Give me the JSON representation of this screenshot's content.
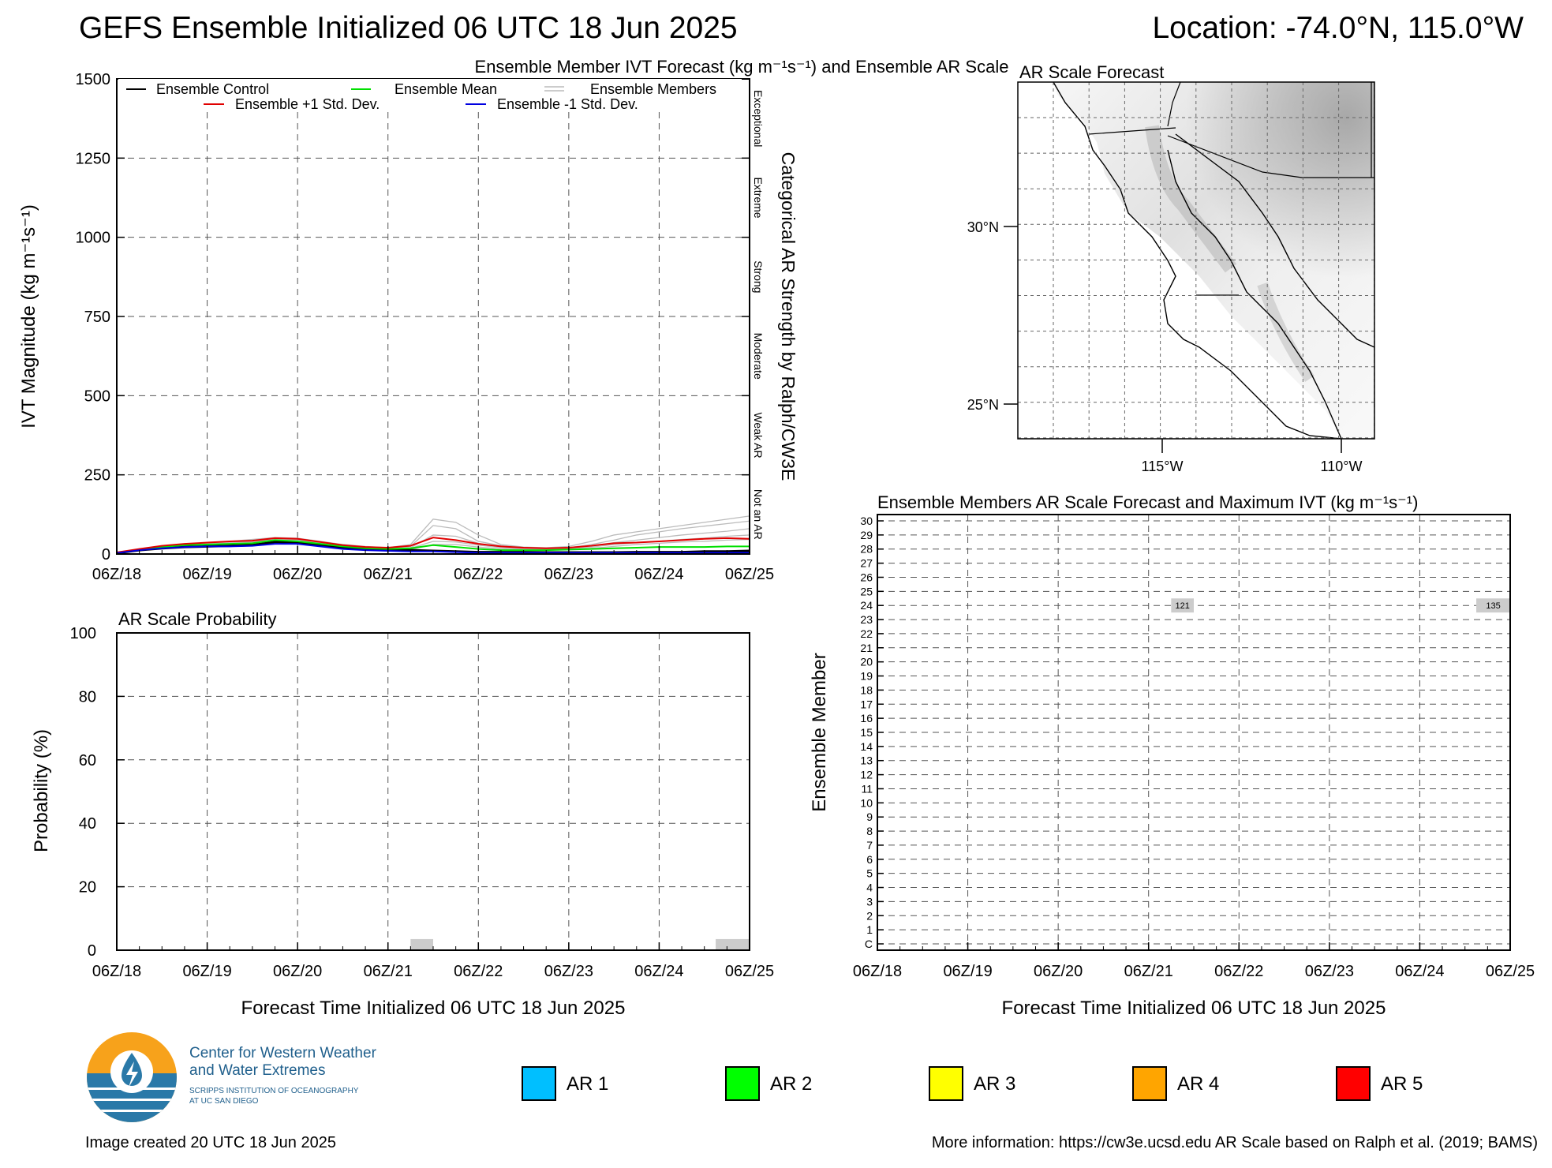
{
  "header": {
    "title": "GEFS Ensemble Initialized 06 UTC 18 Jun 2025",
    "location": "Location: -74.0°N, 115.0°W"
  },
  "time_ticks": [
    "06Z/18",
    "06Z/19",
    "06Z/20",
    "06Z/21",
    "06Z/22",
    "06Z/23",
    "06Z/24",
    "06Z/25"
  ],
  "chart_data": [
    {
      "type": "line",
      "title": "Ensemble Member IVT Forecast (kg m⁻¹s⁻¹) and Ensemble AR Scale",
      "ylabel": "IVT Magnitude (kg m⁻¹s⁻¹)",
      "right_label": "Categorical AR Strength by Ralph/CW3E",
      "ylim": [
        0,
        1500
      ],
      "yticks": [
        0,
        250,
        500,
        750,
        1000,
        1250,
        1500
      ],
      "grid": true,
      "categories_scale": [
        "Not an AR",
        "Weak AR",
        "Moderate",
        "Strong",
        "Extreme",
        "Exceptional"
      ],
      "scale_boundaries": [
        250,
        500,
        750,
        1000,
        1250
      ],
      "x_hours": [
        0,
        6,
        12,
        18,
        24,
        30,
        36,
        42,
        48,
        54,
        60,
        66,
        72,
        78,
        84,
        90,
        96,
        102,
        108,
        114,
        120,
        126,
        132,
        138,
        144,
        150,
        156,
        162,
        168
      ],
      "series": [
        {
          "name": "Ensemble Control",
          "color": "#000000",
          "values": [
            3,
            12,
            18,
            22,
            24,
            26,
            28,
            38,
            36,
            28,
            20,
            16,
            14,
            12,
            10,
            8,
            6,
            6,
            6,
            5,
            5,
            5,
            5,
            6,
            6,
            6,
            8,
            8,
            10
          ]
        },
        {
          "name": "Ensemble Mean",
          "color": "#00e000",
          "values": [
            4,
            14,
            22,
            28,
            30,
            32,
            34,
            44,
            40,
            32,
            24,
            18,
            16,
            18,
            28,
            22,
            16,
            12,
            12,
            12,
            14,
            16,
            18,
            20,
            22,
            22,
            22,
            24,
            24
          ]
        },
        {
          "name": "Ensemble +1 Std. Dev.",
          "color": "#e00000",
          "values": [
            5,
            16,
            26,
            32,
            36,
            40,
            42,
            50,
            48,
            38,
            28,
            22,
            20,
            26,
            52,
            44,
            32,
            24,
            20,
            18,
            20,
            26,
            34,
            36,
            40,
            44,
            48,
            50,
            48
          ]
        },
        {
          "name": "Ensemble -1 Std. Dev.",
          "color": "#0000e0",
          "values": [
            3,
            12,
            18,
            22,
            24,
            24,
            26,
            32,
            32,
            24,
            16,
            12,
            10,
            8,
            8,
            6,
            4,
            4,
            4,
            4,
            4,
            4,
            4,
            4,
            4,
            4,
            4,
            4,
            4
          ]
        }
      ],
      "member_color": "#bbbbbb",
      "members": [
        [
          3,
          14,
          24,
          30,
          34,
          40,
          46,
          52,
          50,
          40,
          30,
          24,
          20,
          30,
          110,
          100,
          60,
          30,
          22,
          20,
          24,
          40,
          60,
          70,
          80,
          90,
          100,
          110,
          120
        ],
        [
          4,
          16,
          22,
          30,
          32,
          36,
          40,
          48,
          46,
          36,
          26,
          20,
          18,
          24,
          90,
          80,
          40,
          26,
          20,
          18,
          20,
          30,
          44,
          60,
          70,
          80,
          88,
          96,
          104
        ],
        [
          3,
          12,
          20,
          26,
          30,
          34,
          38,
          46,
          44,
          36,
          24,
          20,
          16,
          20,
          60,
          56,
          34,
          22,
          18,
          16,
          18,
          26,
          36,
          44,
          52,
          60,
          66,
          72,
          80
        ],
        [
          4,
          14,
          22,
          28,
          32,
          34,
          36,
          42,
          40,
          34,
          24,
          18,
          16,
          18,
          40,
          38,
          28,
          20,
          16,
          14,
          16,
          22,
          30,
          36,
          40,
          46,
          50,
          56,
          60
        ],
        [
          3,
          12,
          18,
          24,
          28,
          30,
          32,
          40,
          40,
          32,
          22,
          16,
          14,
          14,
          30,
          30,
          22,
          16,
          14,
          12,
          14,
          18,
          24,
          30,
          34,
          38,
          40,
          44,
          46
        ]
      ]
    },
    {
      "type": "bar",
      "title": "AR Scale Probability",
      "ylabel": "Probability (%)",
      "xlabel": "Forecast Time Initialized 06 UTC 18 Jun 2025",
      "ylim": [
        0,
        100
      ],
      "yticks": [
        0,
        20,
        40,
        60,
        80,
        100
      ],
      "bars": [
        {
          "start_hour": 78,
          "end_hour": 84,
          "value": 3.5,
          "color": "#cccccc"
        },
        {
          "start_hour": 159,
          "end_hour": 168,
          "value": 3.5,
          "color": "#cccccc"
        }
      ]
    },
    {
      "type": "heatmap",
      "title": "Ensemble Members AR Scale Forecast and Maximum IVT (kg m⁻¹s⁻¹)",
      "ylabel": "Ensemble Member",
      "xlabel": "Forecast Time Initialized 06 UTC 18 Jun 2025",
      "members": [
        "C",
        "1",
        "2",
        "3",
        "4",
        "5",
        "6",
        "7",
        "8",
        "9",
        "10",
        "11",
        "12",
        "13",
        "14",
        "15",
        "16",
        "17",
        "18",
        "19",
        "20",
        "21",
        "22",
        "23",
        "24",
        "25",
        "26",
        "27",
        "28",
        "29",
        "30"
      ],
      "cells": [
        {
          "member": "24",
          "start_hour": 78,
          "end_hour": 84,
          "max_ivt": "121",
          "color": "#cccccc"
        },
        {
          "member": "24",
          "start_hour": 159,
          "end_hour": 168,
          "max_ivt": "135",
          "color": "#cccccc"
        }
      ]
    }
  ],
  "map": {
    "title": "AR Scale Forecast",
    "lat_labels": [
      "30°N",
      "25°N"
    ],
    "lon_labels": [
      "115°W",
      "110°W"
    ]
  },
  "legend": {
    "control": "Ensemble Control",
    "mean": "Ensemble Mean",
    "members": "Ensemble Members",
    "plus": "Ensemble +1 Std. Dev.",
    "minus": "Ensemble -1 Std. Dev."
  },
  "ar_legend": [
    {
      "label": "AR 1",
      "color": "#00bfff"
    },
    {
      "label": "AR 2",
      "color": "#00ff00"
    },
    {
      "label": "AR 3",
      "color": "#ffff00"
    },
    {
      "label": "AR 4",
      "color": "#ffa500"
    },
    {
      "label": "AR 5",
      "color": "#ff0000"
    }
  ],
  "logo": {
    "line1": "Center for Western Weather",
    "line2": "and Water Extremes",
    "line3": "SCRIPPS INSTITUTION OF OCEANOGRAPHY",
    "line4": "AT UC SAN DIEGO"
  },
  "footer": {
    "created": "Image created 20 UTC 18 Jun 2025",
    "info": "More information: https://cw3e.ucsd.edu AR Scale based on Ralph et al. (2019; BAMS)"
  }
}
